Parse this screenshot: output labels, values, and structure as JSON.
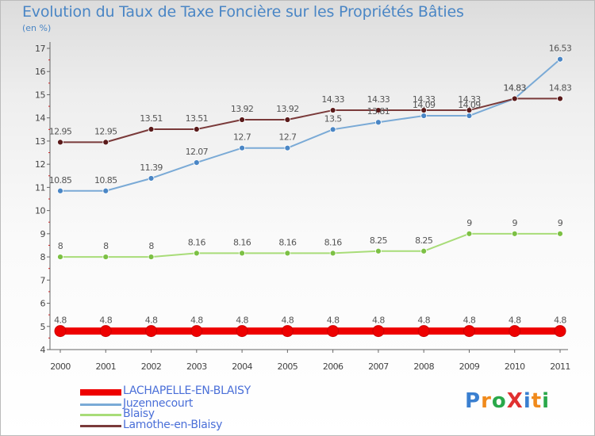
{
  "title": "Evolution du Taux de Taxe Foncière sur les Propriétés Bâties",
  "unit_label": "(en %)",
  "chart_data": {
    "type": "line",
    "title": "Evolution du Taux de Taxe Foncière sur les Propriétés Bâties",
    "ylabel": "(en %)",
    "xlabel": "",
    "categories": [
      "2000",
      "2001",
      "2002",
      "2003",
      "2004",
      "2005",
      "2006",
      "2007",
      "2008",
      "2009",
      "2010",
      "2011"
    ],
    "ylim": [
      4,
      17
    ],
    "yticks": [
      "4",
      "5",
      "6",
      "7",
      "8",
      "9",
      "10",
      "11",
      "12",
      "13",
      "14",
      "15",
      "16",
      "17"
    ],
    "grid": false,
    "series": [
      {
        "name": "LACHAPELLE-EN-BLAISY",
        "color": "#ee0000",
        "point_color": "#ee0000",
        "values": [
          4.8,
          4.8,
          4.8,
          4.8,
          4.8,
          4.8,
          4.8,
          4.8,
          4.8,
          4.8,
          4.8,
          4.8
        ],
        "labels": [
          "4.8",
          "4.8",
          "4.8",
          "4.8",
          "4.8",
          "4.8",
          "4.8",
          "4.8",
          "4.8",
          "4.8",
          "4.8",
          "4.8"
        ]
      },
      {
        "name": "Juzennecourt",
        "color": "#7aaad6",
        "point_color": "#4a86c5",
        "values": [
          10.85,
          10.85,
          11.39,
          12.07,
          12.7,
          12.7,
          13.5,
          13.81,
          14.09,
          14.09,
          14.83,
          16.53
        ],
        "labels": [
          "10.85",
          "10.85",
          "11.39",
          "12.07",
          "12.7",
          "12.7",
          "13.5",
          "13.81",
          "14.09",
          "14.09",
          "14.83",
          "16.53"
        ]
      },
      {
        "name": "Blaisy",
        "color": "#a8dc78",
        "point_color": "#7cc044",
        "values": [
          8,
          8,
          8,
          8.16,
          8.16,
          8.16,
          8.16,
          8.25,
          8.25,
          9,
          9,
          9
        ],
        "labels": [
          "8",
          "8",
          "8",
          "8.16",
          "8.16",
          "8.16",
          "8.16",
          "8.25",
          "8.25",
          "9",
          "9",
          "9"
        ]
      },
      {
        "name": "Lamothe-en-Blaisy",
        "color": "#7a3a3a",
        "point_color": "#5a1a1a",
        "values": [
          12.95,
          12.95,
          13.51,
          13.51,
          13.92,
          13.92,
          14.33,
          14.33,
          14.33,
          14.33,
          14.83,
          14.83
        ],
        "labels": [
          "12.95",
          "12.95",
          "13.51",
          "13.51",
          "13.92",
          "13.92",
          "14.33",
          "14.33",
          "14.33",
          "14.33",
          "14.83",
          "14.83"
        ]
      }
    ]
  },
  "legend": [
    {
      "label": "LACHAPELLE-EN-BLAISY",
      "color": "#ee0000"
    },
    {
      "label": "Juzennecourt",
      "color": "#7aaad6"
    },
    {
      "label": "Blaisy",
      "color": "#a8dc78"
    },
    {
      "label": "Lamothe-en-Blaisy",
      "color": "#7a3a3a"
    }
  ],
  "logo": {
    "text": "ProXiti",
    "letters": [
      "P",
      "r",
      "o",
      "X",
      "i",
      "t",
      "i"
    ],
    "colors": [
      "#3a7fd0",
      "#f08a1c",
      "#2aa84a",
      "#e03030",
      "#3a7fd0",
      "#f08a1c",
      "#2aa84a"
    ]
  }
}
